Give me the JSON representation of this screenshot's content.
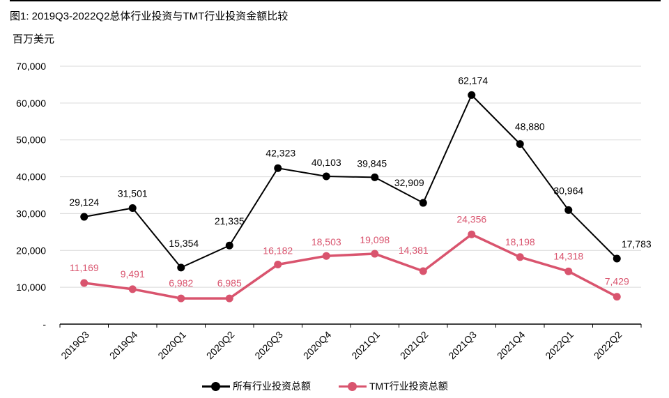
{
  "chart_data": {
    "type": "line",
    "title": "图1: 2019Q3-2022Q2总体行业投资与TMT行业投资金额比较",
    "unit_label": "百万美元",
    "categories": [
      "2019Q3",
      "2019Q4",
      "2020Q1",
      "2020Q2",
      "2020Q3",
      "2020Q4",
      "2021Q1",
      "2021Q2",
      "2021Q3",
      "2021Q4",
      "2022Q1",
      "2022Q2"
    ],
    "ylim": [
      0,
      70000
    ],
    "yticks": [
      0,
      10000,
      20000,
      30000,
      40000,
      50000,
      60000,
      70000
    ],
    "ytick_labels": [
      "-",
      "10,000",
      "20,000",
      "30,000",
      "40,000",
      "50,000",
      "60,000",
      "70,000"
    ],
    "series": [
      {
        "name": "所有行业投资总额",
        "color": "#000000",
        "values": [
          29124,
          31501,
          15354,
          21335,
          42323,
          40103,
          39845,
          32909,
          62174,
          48880,
          30964,
          17783
        ],
        "labels": [
          "29,124",
          "31,501",
          "15,354",
          "21,335",
          "42,323",
          "40,103",
          "39,845",
          "32,909",
          "62,174",
          "48,880",
          "30,964",
          "17,783"
        ]
      },
      {
        "name": "TMT行业投资总额",
        "color": "#d9546e",
        "values": [
          11169,
          9491,
          6982,
          6985,
          16182,
          18503,
          19098,
          14381,
          24356,
          18198,
          14318,
          7429
        ],
        "labels": [
          "11,169",
          "9,491",
          "6,982",
          "6,985",
          "16,182",
          "18,503",
          "19,098",
          "14,381",
          "24,356",
          "18,198",
          "14,318",
          "7,429"
        ]
      }
    ]
  }
}
